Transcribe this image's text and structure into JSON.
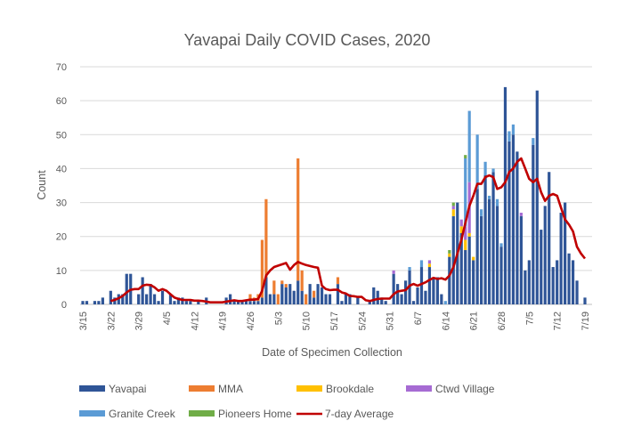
{
  "chart_data": {
    "type": "bar",
    "stacked": true,
    "title": "Yavapai Daily COVID Cases, 2020",
    "xlabel": "Date of Specimen Collection",
    "ylabel": "Count",
    "ylim": [
      0,
      70
    ],
    "yticks": [
      0,
      10,
      20,
      30,
      40,
      50,
      60,
      70
    ],
    "grid": true,
    "legend_position": "bottom",
    "x_first_date": "3/15",
    "xtick_labels": [
      "3/15",
      "3/22",
      "3/29",
      "4/5",
      "4/12",
      "4/19",
      "4/26",
      "5/3",
      "5/10",
      "5/17",
      "5/24",
      "5/31",
      "6/7",
      "6/14",
      "6/21",
      "6/28",
      "7/5",
      "7/12",
      "7/19"
    ],
    "series": [
      {
        "name": "Yavapai",
        "color": "#2F5597",
        "values": [
          1,
          1,
          0,
          1,
          1,
          2,
          0,
          4,
          2,
          3,
          3,
          9,
          9,
          0,
          3,
          8,
          3,
          6,
          3,
          1,
          4,
          0,
          3,
          1,
          2,
          2,
          1,
          1,
          0,
          1,
          0,
          2,
          0,
          0,
          0,
          0,
          2,
          3,
          1,
          1,
          1,
          1,
          1,
          1,
          1,
          2,
          8,
          3,
          3,
          0,
          6,
          5,
          6,
          4,
          7,
          4,
          0,
          6,
          2,
          6,
          5,
          3,
          3,
          0,
          6,
          1,
          3,
          3,
          0,
          2,
          0,
          0,
          1,
          5,
          4,
          2,
          1,
          0,
          9,
          6,
          3,
          7,
          10,
          1,
          5,
          11,
          4,
          11,
          8,
          8,
          3,
          0,
          14,
          26,
          30,
          21,
          16,
          20,
          13,
          34,
          26,
          38,
          31,
          39,
          29,
          17,
          64,
          48,
          50,
          45,
          26,
          10,
          13,
          47,
          63,
          22,
          29,
          39,
          11,
          13,
          27,
          30,
          15,
          13,
          7,
          0,
          2
        ]
      },
      {
        "name": "MMA",
        "color": "#ED7D31",
        "values_by_date": {
          "4/26": 2,
          "4/27": 1,
          "4/28": 2,
          "4/29": 17,
          "4/30": 23,
          "5/2": 4,
          "5/3": 3,
          "5/4": 1,
          "5/5": 1,
          "5/8": 36,
          "5/9": 6,
          "5/10": 3,
          "5/12": 2,
          "5/18": 2
        }
      },
      {
        "name": "Brookdale",
        "color": "#FFC000",
        "values_by_date": {
          "6/10": 1,
          "6/15": 1,
          "6/16": 2,
          "6/18": 2,
          "6/19": 3,
          "6/20": 1,
          "6/21": 1
        }
      },
      {
        "name": "Ctwd Village",
        "color": "#A66BD3",
        "values_by_date": {
          "6/1": 1,
          "6/10": 1,
          "6/16": 1,
          "6/18": 2,
          "6/19": 4,
          "6/20": 15,
          "7/3": 1
        }
      },
      {
        "name": "Granite Creek",
        "color": "#5B9BD5",
        "values_by_date": {
          "6/5": 1,
          "6/8": 2,
          "6/14": 1,
          "6/19": 20,
          "6/20": 21,
          "6/22": 16,
          "6/23": 2,
          "6/24": 4,
          "6/25": 1,
          "6/26": 1,
          "6/27": 2,
          "6/28": 1,
          "6/30": 3,
          "7/1": 3,
          "7/6": 2
        }
      },
      {
        "name": "Pioneers Home",
        "color": "#70AD47",
        "values_by_date": {
          "6/15": 1,
          "6/16": 1,
          "6/19": 1
        }
      }
    ],
    "line": {
      "name": "7-day Average",
      "color": "#C00000",
      "first_date": "3/22",
      "values": [
        1,
        1.3,
        1.8,
        2.5,
        3.5,
        4.3,
        4.5,
        4.5,
        5.5,
        5.8,
        5.7,
        5,
        4,
        4.5,
        4,
        3,
        2,
        1.6,
        1.3,
        1.3,
        1.3,
        1.1,
        1.1,
        1,
        0.8,
        0.6,
        0.6,
        0.6,
        0.6,
        0.8,
        1,
        1.2,
        1,
        1,
        1.2,
        1.4,
        1.4,
        1.6,
        4,
        8.5,
        10,
        11,
        11.4,
        11.8,
        12.2,
        10.2,
        11.6,
        12.5,
        12,
        11.6,
        11.3,
        11,
        10.8,
        5.5,
        4.5,
        4.2,
        4.3,
        4.3,
        3.5,
        3.2,
        2.5,
        2.4,
        2.2,
        2.2,
        1.2,
        1,
        1.3,
        1.6,
        1.7,
        1.7,
        1.7,
        3,
        3.8,
        4,
        4.2,
        5.5,
        6,
        5.5,
        6,
        6.5,
        7.2,
        7.8,
        7.5,
        7.7,
        7.3,
        8.5,
        11,
        15,
        19,
        24,
        29,
        32,
        35.5,
        35.5,
        37.5,
        38,
        37.5,
        34,
        34.5,
        36,
        39,
        40,
        42,
        43,
        40,
        37,
        36,
        37,
        33,
        30.5,
        32,
        32.5,
        32,
        28.5,
        25,
        23.5,
        21.5,
        17,
        15,
        13.5
      ]
    }
  }
}
